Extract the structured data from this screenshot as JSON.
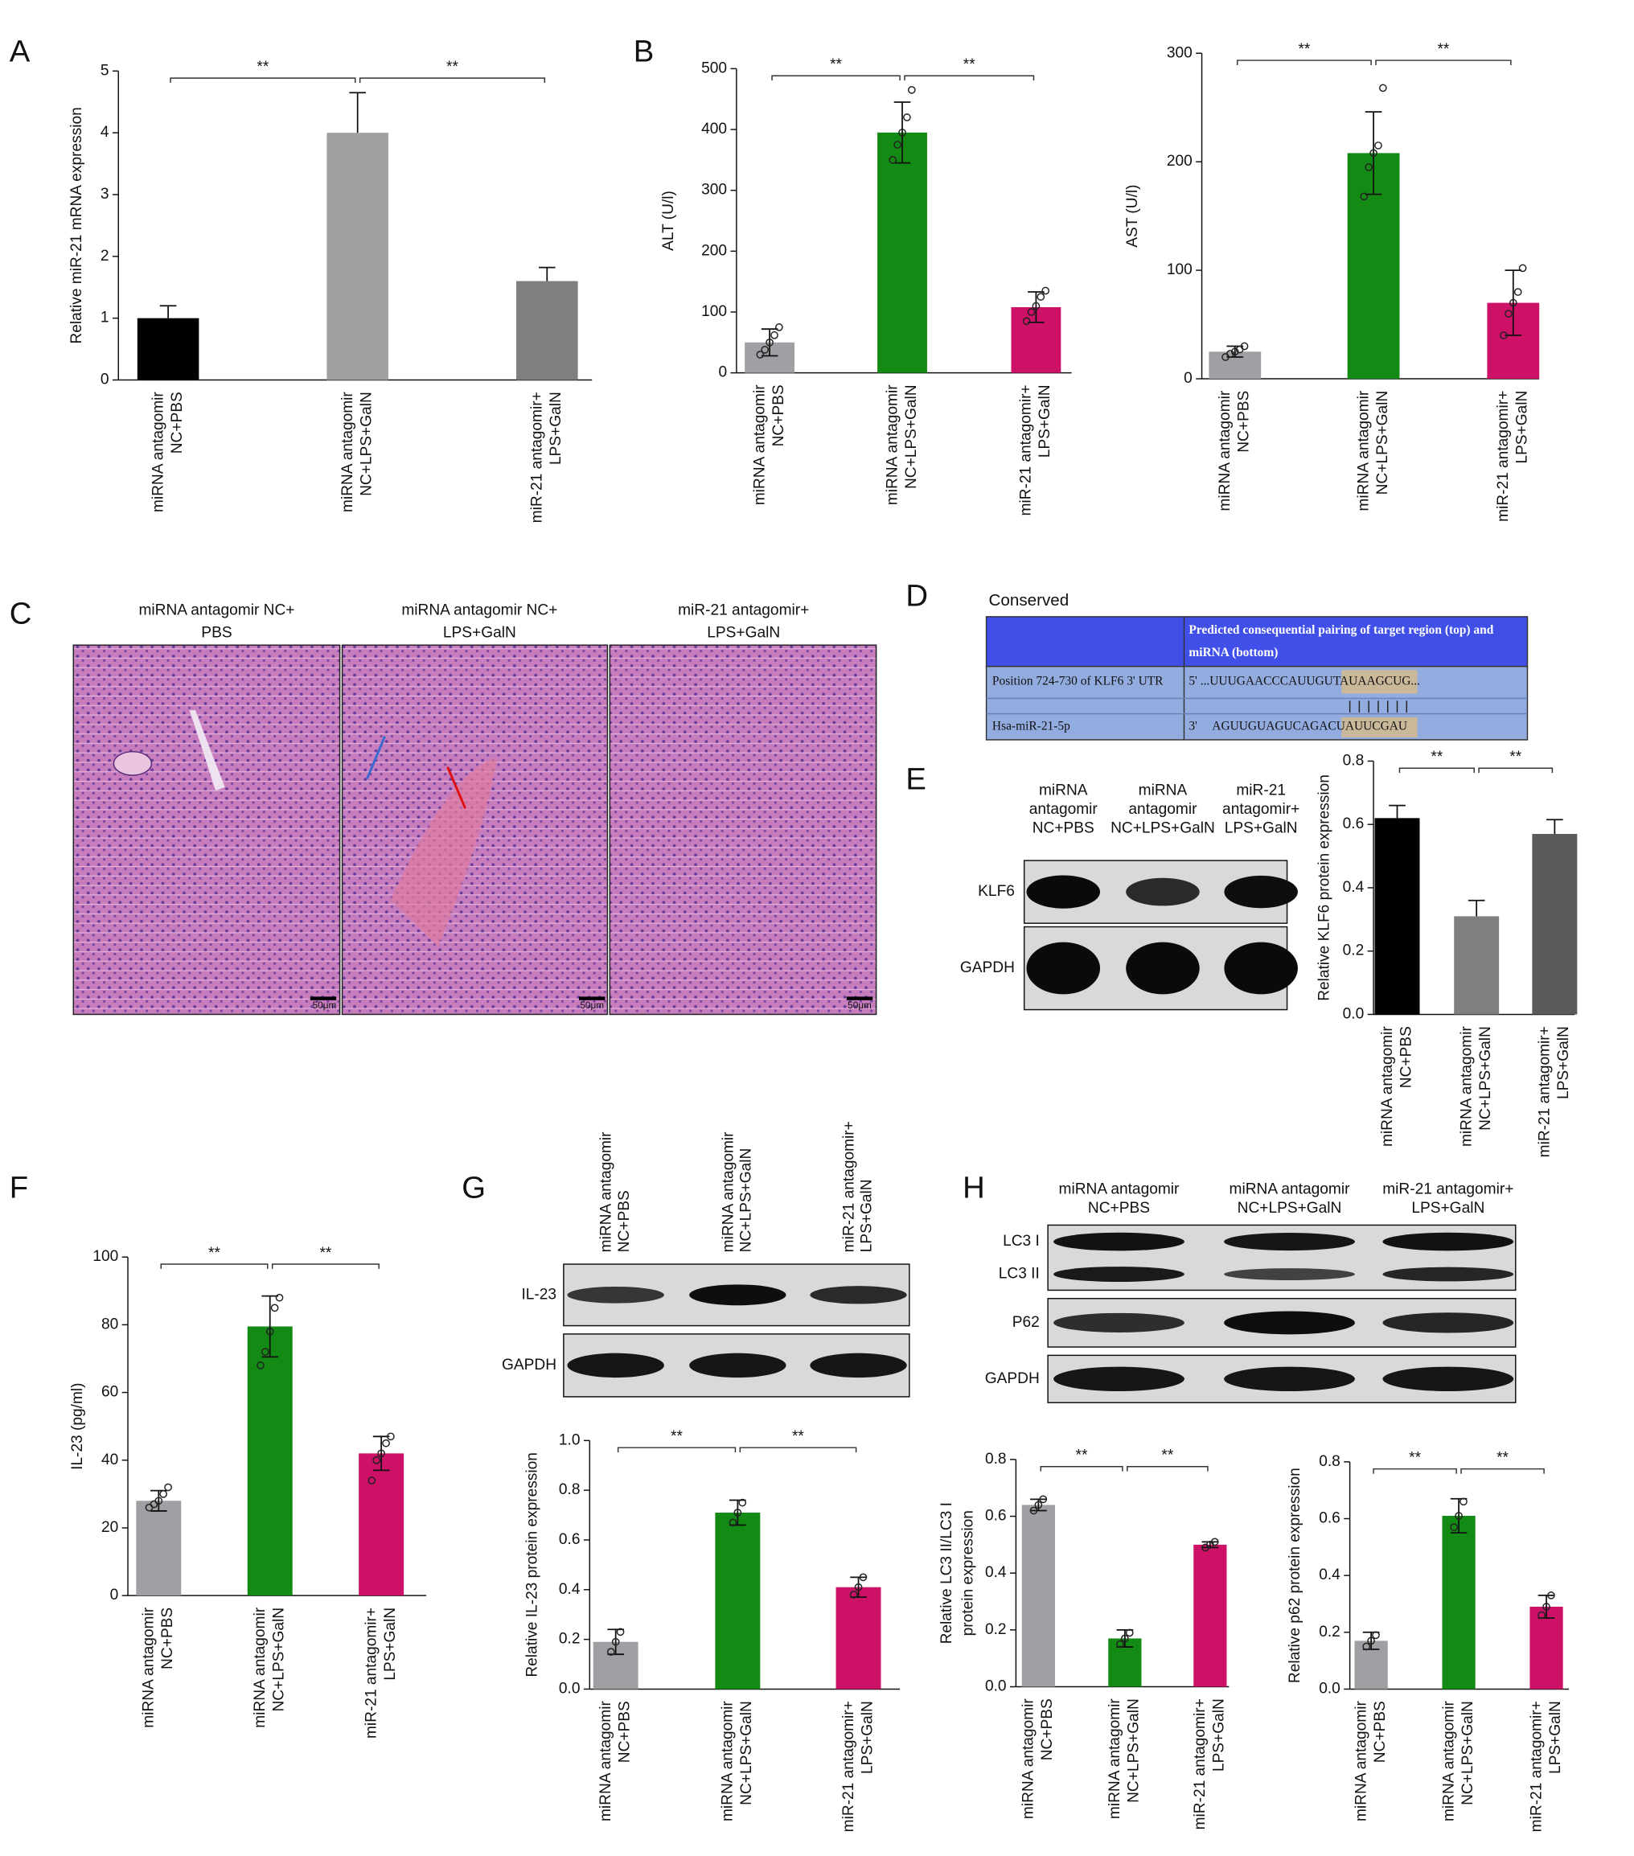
{
  "panel_labels": [
    "A",
    "B",
    "C",
    "D",
    "E",
    "F",
    "G",
    "H"
  ],
  "chart_data": [
    {
      "type": "bar",
      "ylabel": [
        "Relative miR-21 mRNA expression"
      ],
      "categories": [
        [
          "miRNA antagomir",
          "NC+PBS"
        ],
        [
          "miRNA antagomir",
          "NC+LPS+GalN"
        ],
        [
          "miR-21 antagomir+",
          "LPS+GalN"
        ]
      ],
      "values": [
        1.0,
        4.0,
        1.6
      ],
      "errors": [
        0.2,
        0.65,
        0.22
      ],
      "error_bars": "upper",
      "colors": [
        "#000000",
        "#a0a0a0",
        "#7f7f7f"
      ],
      "ylim": [
        0,
        5
      ],
      "yticks": [
        0,
        1,
        2,
        3,
        4,
        5
      ],
      "annotations": [
        "**",
        "**"
      ]
    },
    {
      "type": "bar",
      "ylabel": [
        "ALT (U/l)"
      ],
      "categories": [
        [
          "miRNA antagomir",
          "NC+PBS"
        ],
        [
          "miRNA antagomir",
          "NC+LPS+GalN"
        ],
        [
          "miR-21 antagomir+",
          "LPS+GalN"
        ]
      ],
      "values": [
        50,
        395,
        108
      ],
      "errors": [
        22,
        50,
        25
      ],
      "error_bars": "both",
      "points": [
        [
          30,
          38,
          50,
          62,
          75
        ],
        [
          350,
          375,
          395,
          420,
          465
        ],
        [
          85,
          100,
          110,
          125,
          135
        ]
      ],
      "colors": [
        "#a0a0a4",
        "#138a13",
        "#cc1166"
      ],
      "ylim": [
        0,
        500
      ],
      "yticks": [
        0,
        100,
        200,
        300,
        400,
        500
      ],
      "annotations": [
        "**",
        "**"
      ]
    },
    {
      "type": "bar",
      "ylabel": [
        "AST (U/l)"
      ],
      "categories": [
        [
          "miRNA antagomir",
          "NC+PBS"
        ],
        [
          "miRNA antagomir",
          "NC+LPS+GalN"
        ],
        [
          "miR-21 antagomir+",
          "LPS+GalN"
        ]
      ],
      "values": [
        25,
        208,
        70
      ],
      "errors": [
        5,
        38,
        30
      ],
      "error_bars": "both",
      "points": [
        [
          20,
          23,
          25,
          27,
          30
        ],
        [
          168,
          195,
          208,
          215,
          268
        ],
        [
          40,
          60,
          70,
          80,
          102
        ]
      ],
      "colors": [
        "#a0a0a4",
        "#138a13",
        "#cc1166"
      ],
      "ylim": [
        0,
        300
      ],
      "yticks": [
        0,
        100,
        200,
        300
      ],
      "annotations": [
        "**",
        "**"
      ]
    },
    {
      "type": "bar",
      "ylabel": [
        "Relative KLF6 protein expression"
      ],
      "categories": [
        [
          "miRNA antagomir",
          "NC+PBS"
        ],
        [
          "miRNA antagomir",
          "NC+LPS+GalN"
        ],
        [
          "miR-21 antagomir+",
          "LPS+GalN"
        ]
      ],
      "values": [
        0.62,
        0.31,
        0.57
      ],
      "errors": [
        0.04,
        0.05,
        0.045
      ],
      "error_bars": "upper",
      "colors": [
        "#000000",
        "#808080",
        "#5a5a5a"
      ],
      "ylim": [
        0,
        0.8
      ],
      "yticks": [
        {
          "value": 0,
          "label": "0.0"
        },
        0.2,
        0.4,
        0.6,
        0.8
      ],
      "annotations": [
        "**",
        "**"
      ]
    },
    {
      "type": "bar",
      "ylabel": [
        "IL-23 (pg/ml)"
      ],
      "categories": [
        [
          "miRNA antagomir",
          "NC+PBS"
        ],
        [
          "miRNA antagomir",
          "NC+LPS+GalN"
        ],
        [
          "miR-21 antagomir+",
          "LPS+GalN"
        ]
      ],
      "values": [
        28,
        79.5,
        42
      ],
      "errors": [
        3,
        9,
        5
      ],
      "error_bars": "both",
      "points": [
        [
          26,
          27,
          28,
          30,
          32
        ],
        [
          68,
          72,
          78,
          85,
          88
        ],
        [
          34,
          40,
          42,
          45,
          47
        ]
      ],
      "colors": [
        "#a0a0a4",
        "#138a13",
        "#cc1166"
      ],
      "ylim": [
        0,
        100
      ],
      "yticks": [
        0,
        20,
        40,
        60,
        80,
        100
      ],
      "annotations": [
        "**",
        "**"
      ]
    },
    {
      "type": "bar",
      "ylabel": [
        "Relative IL-23 protein expression"
      ],
      "categories": [
        [
          "miRNA antagomir",
          "NC+PBS"
        ],
        [
          "miRNA antagomir",
          "NC+LPS+GalN"
        ],
        [
          "miR-21 antagomir+",
          "LPS+GalN"
        ]
      ],
      "values": [
        0.19,
        0.71,
        0.41
      ],
      "errors": [
        0.05,
        0.05,
        0.04
      ],
      "error_bars": "both",
      "points": [
        [
          0.15,
          0.19,
          0.23
        ],
        [
          0.67,
          0.71,
          0.75
        ],
        [
          0.38,
          0.41,
          0.45
        ]
      ],
      "colors": [
        "#a0a0a4",
        "#138a13",
        "#cc1166"
      ],
      "ylim": [
        0,
        1.0
      ],
      "yticks": [
        {
          "value": 0,
          "label": "0.0"
        },
        0.2,
        0.4,
        0.6,
        0.8,
        {
          "value": 1.0,
          "label": "1.0"
        }
      ],
      "annotations": [
        "**",
        "**"
      ]
    },
    {
      "type": "bar",
      "ylabel": [
        "Relative LC3 II/LC3 I",
        "protein expression"
      ],
      "categories": [
        [
          "miRNA antagomir",
          "NC+PBS"
        ],
        [
          "miRNA antagomir",
          "NC+LPS+GalN"
        ],
        [
          "miR-21 antagomir+",
          "LPS+GalN"
        ]
      ],
      "values": [
        0.64,
        0.17,
        0.5
      ],
      "errors": [
        0.02,
        0.03,
        0.01
      ],
      "error_bars": "both",
      "points": [
        [
          0.62,
          0.64,
          0.66
        ],
        [
          0.15,
          0.17,
          0.19
        ],
        [
          0.49,
          0.5,
          0.51
        ]
      ],
      "colors": [
        "#a0a0a4",
        "#138a13",
        "#cc1166"
      ],
      "ylim": [
        0,
        0.8
      ],
      "yticks": [
        {
          "value": 0,
          "label": "0.0"
        },
        0.2,
        0.4,
        0.6,
        0.8
      ],
      "annotations": [
        "**",
        "**"
      ]
    },
    {
      "type": "bar",
      "ylabel": [
        "Relative p62 protein expression"
      ],
      "categories": [
        [
          "miRNA antagomir",
          "NC+PBS"
        ],
        [
          "miRNA antagomir",
          "NC+LPS+GalN"
        ],
        [
          "miR-21 antagomir+",
          "LPS+GalN"
        ]
      ],
      "values": [
        0.17,
        0.61,
        0.29
      ],
      "errors": [
        0.03,
        0.06,
        0.04
      ],
      "error_bars": "both",
      "points": [
        [
          0.15,
          0.17,
          0.19
        ],
        [
          0.57,
          0.61,
          0.66
        ],
        [
          0.26,
          0.29,
          0.33
        ]
      ],
      "colors": [
        "#a0a0a4",
        "#138a13",
        "#cc1166"
      ],
      "ylim": [
        0,
        0.8
      ],
      "yticks": [
        {
          "value": 0,
          "label": "0.0"
        },
        0.2,
        0.4,
        0.6,
        0.8
      ],
      "annotations": [
        "**",
        "**"
      ]
    }
  ],
  "histology": {
    "titles": [
      [
        "miRNA antagomir NC+",
        "PBS"
      ],
      [
        "miRNA antagomir NC+",
        "LPS+GalN"
      ],
      [
        "miR-21 antagomir+",
        "LPS+GalN"
      ]
    ],
    "scale_bar": "50μm"
  },
  "sequence": {
    "title": "Conserved",
    "header": [
      "Predicted consequential pairing of target region (top) and",
      "miRNA (bottom)"
    ],
    "rows": [
      [
        "Position 724-730 of KLF6 3' UTR",
        "5' ...UUUGAACCCAUUGUTAUAAGCUG..."
      ],
      [
        "Hsa-miR-21-5p",
        "3'     AGUUGUAGUCAGACUAUUCGAU"
      ]
    ]
  },
  "blots": [
    {
      "columns": [
        [
          "miRNA",
          "antagomir",
          "NC+PBS"
        ],
        [
          "miRNA",
          "antagomir",
          "NC+LPS+GalN"
        ],
        [
          "miR-21",
          "antagomir+",
          "LPS+GalN"
        ]
      ],
      "rows": [
        "KLF6",
        "GAPDH"
      ]
    },
    {
      "columns": [
        [
          "miRNA antagomir",
          "NC+PBS"
        ],
        [
          "miRNA antagomir",
          "NC+LPS+GalN"
        ],
        [
          "miR-21 antagomir+",
          "LPS+GalN"
        ]
      ],
      "rows": [
        "IL-23",
        "GAPDH"
      ]
    },
    {
      "columns": [
        [
          "miRNA antagomir",
          "NC+PBS"
        ],
        [
          "miRNA antagomir",
          "NC+LPS+GalN"
        ],
        [
          "miR-21 antagomir+",
          "LPS+GalN"
        ]
      ],
      "rows": [
        "LC3 I",
        "LC3 II",
        "P62",
        "GAPDH"
      ]
    }
  ]
}
